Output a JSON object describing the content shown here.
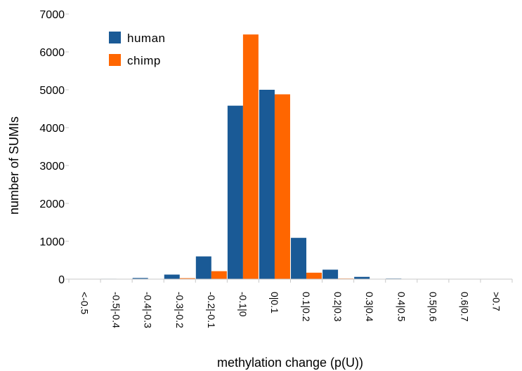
{
  "chart_data": {
    "type": "bar",
    "title": "",
    "xlabel": "methylation change (p(U))",
    "ylabel": "number of SUMIs",
    "ylim": [
      0,
      7000
    ],
    "yticks": [
      0,
      1000,
      2000,
      3000,
      4000,
      5000,
      6000,
      7000
    ],
    "grid": false,
    "legend": "top-left",
    "categories": [
      "<-0.5",
      "-0.5|-0.4",
      "-0.4|-0.3",
      "-0.3|-0.2",
      "-0.2|-0.1",
      "-0.1|0",
      "0|0.1",
      "0.1|0.2",
      "0.2|0.3",
      "0.3|0.4",
      "0.4|0.5",
      "0.5|0.6",
      "0.6|0.7",
      ">0.7"
    ],
    "series": [
      {
        "name": "human",
        "color": "#1a5a96",
        "values": [
          2,
          10,
          30,
          120,
          600,
          4580,
          5000,
          1090,
          250,
          60,
          15,
          5,
          3,
          1
        ]
      },
      {
        "name": "chimp",
        "color": "#ff6600",
        "values": [
          1,
          3,
          5,
          25,
          210,
          6460,
          4880,
          170,
          15,
          3,
          1,
          1,
          0,
          0
        ]
      }
    ]
  }
}
